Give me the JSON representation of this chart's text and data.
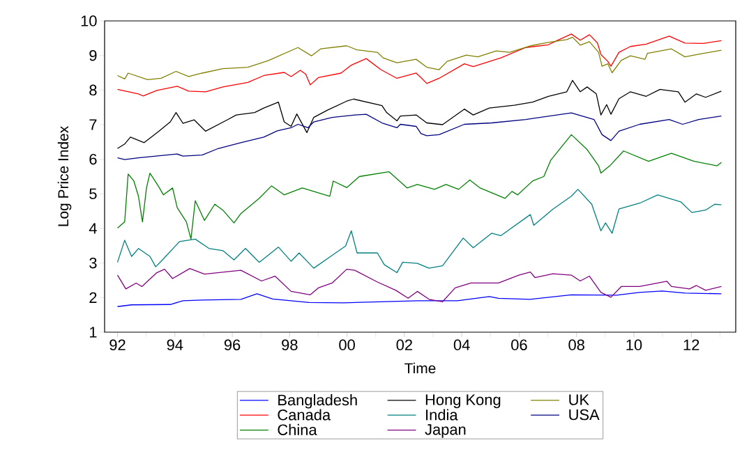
{
  "chart_data": {
    "type": "line",
    "xlabel": "Time",
    "ylabel": "Log Price Index",
    "xlim": [
      1991.55,
      2013.55
    ],
    "ylim": [
      1,
      10
    ],
    "xticks": [
      {
        "value": 1992,
        "label": "92"
      },
      {
        "value": 1993,
        "label": null
      },
      {
        "value": 1994,
        "label": "94"
      },
      {
        "value": 1995,
        "label": null
      },
      {
        "value": 1996,
        "label": "96"
      },
      {
        "value": 1997,
        "label": null
      },
      {
        "value": 1998,
        "label": "98"
      },
      {
        "value": 1999,
        "label": null
      },
      {
        "value": 2000,
        "label": "00"
      },
      {
        "value": 2001,
        "label": null
      },
      {
        "value": 2002,
        "label": "02"
      },
      {
        "value": 2003,
        "label": null
      },
      {
        "value": 2004,
        "label": "04"
      },
      {
        "value": 2005,
        "label": null
      },
      {
        "value": 2006,
        "label": "06"
      },
      {
        "value": 2007,
        "label": null
      },
      {
        "value": 2008,
        "label": "08"
      },
      {
        "value": 2009,
        "label": null
      },
      {
        "value": 2010,
        "label": "10"
      },
      {
        "value": 2011,
        "label": null
      },
      {
        "value": 2012,
        "label": "12"
      },
      {
        "value": 2013,
        "label": null
      }
    ],
    "yticks": [
      1,
      2,
      3,
      4,
      5,
      6,
      7,
      8,
      9,
      10
    ],
    "legend": "bottom",
    "series": [
      {
        "name": "Bangladesh",
        "color": "#0000ff",
        "x": [
          1992.0,
          1992.49,
          1993.84,
          1994.28,
          1994.95,
          1996.3,
          1996.86,
          1997.41,
          1998.68,
          1999.87,
          2002.49,
          2003.85,
          2004.96,
          2005.28,
          2006.39,
          2007.82,
          2009.4,
          2010.2,
          2010.99,
          2011.78,
          2013.05
        ],
        "values": [
          1.74,
          1.79,
          1.8,
          1.91,
          1.93,
          1.95,
          2.11,
          1.96,
          1.86,
          1.85,
          1.91,
          1.91,
          2.03,
          1.98,
          1.95,
          2.08,
          2.07,
          2.15,
          2.19,
          2.13,
          2.11
        ]
      },
      {
        "name": "Canada",
        "color": "#ff0000",
        "x": [
          1992.0,
          1992.73,
          1992.89,
          1993.37,
          1994.08,
          1994.48,
          1995.07,
          1995.67,
          1996.54,
          1997.1,
          1997.81,
          1998.05,
          1998.37,
          1998.56,
          1998.72,
          1999.0,
          1999.79,
          2000.15,
          2000.67,
          2001.18,
          2001.74,
          2002.41,
          2002.58,
          2002.78,
          2003.21,
          2004.09,
          2004.4,
          2005.36,
          2006.23,
          2007.02,
          2007.34,
          2007.82,
          2008.13,
          2008.45,
          2008.73,
          2008.85,
          2009.09,
          2009.2,
          2009.48,
          2009.88,
          2010.43,
          2011.23,
          2011.78,
          2012.42,
          2013.05
        ],
        "values": [
          8.02,
          7.89,
          7.83,
          7.99,
          8.11,
          7.97,
          7.95,
          8.09,
          8.22,
          8.42,
          8.51,
          8.39,
          8.57,
          8.46,
          8.15,
          8.36,
          8.49,
          8.72,
          8.91,
          8.59,
          8.34,
          8.49,
          8.36,
          8.19,
          8.34,
          8.76,
          8.68,
          8.93,
          9.23,
          9.31,
          9.44,
          9.62,
          9.44,
          9.6,
          9.36,
          9.03,
          8.83,
          8.69,
          9.09,
          9.26,
          9.33,
          9.56,
          9.36,
          9.35,
          9.43
        ]
      },
      {
        "name": "China",
        "color": "#008000",
        "x": [
          1992.0,
          1992.25,
          1992.37,
          1992.57,
          1992.73,
          1992.87,
          1993.01,
          1993.13,
          1993.44,
          1993.6,
          1993.92,
          1994.08,
          1994.4,
          1994.56,
          1994.71,
          1995.03,
          1995.39,
          1995.67,
          1996.06,
          1996.3,
          1996.94,
          1997.37,
          1997.81,
          1998.44,
          1998.84,
          1999.4,
          1999.52,
          1999.99,
          2000.43,
          2001.46,
          2002.1,
          2002.45,
          2003.05,
          2003.45,
          2003.89,
          2004.28,
          2004.64,
          2005.51,
          2005.75,
          2005.95,
          2006.47,
          2006.86,
          2007.1,
          2007.82,
          2008.37,
          2008.77,
          2008.85,
          2009.16,
          2009.64,
          2010.51,
          2011.31,
          2012.1,
          2012.9,
          2013.05
        ],
        "values": [
          4.01,
          4.19,
          5.57,
          5.37,
          4.93,
          4.19,
          5.17,
          5.6,
          5.2,
          4.97,
          5.17,
          4.6,
          4.19,
          3.69,
          4.8,
          4.23,
          4.7,
          4.53,
          4.16,
          4.43,
          4.87,
          5.23,
          4.97,
          5.17,
          5.07,
          4.93,
          5.37,
          5.18,
          5.5,
          5.64,
          5.17,
          5.27,
          5.13,
          5.27,
          5.13,
          5.4,
          5.17,
          4.87,
          5.07,
          4.97,
          5.37,
          5.5,
          5.97,
          6.71,
          6.28,
          5.81,
          5.6,
          5.81,
          6.24,
          5.94,
          6.17,
          5.94,
          5.81,
          5.91
        ]
      },
      {
        "name": "Hong Kong",
        "color": "#000000",
        "x": [
          1992.0,
          1992.25,
          1992.45,
          1992.93,
          1993.44,
          1993.84,
          1994.04,
          1994.28,
          1994.67,
          1995.07,
          1995.83,
          1996.14,
          1996.78,
          1997.1,
          1997.61,
          1997.81,
          1998.05,
          1998.25,
          1998.6,
          1998.84,
          1999.32,
          1999.99,
          2000.23,
          2001.22,
          2001.38,
          2001.74,
          2001.86,
          2002.41,
          2002.78,
          2003.33,
          2004.09,
          2004.4,
          2004.96,
          2005.83,
          2006.47,
          2007.02,
          2007.66,
          2007.86,
          2008.13,
          2008.37,
          2008.69,
          2008.85,
          2009.05,
          2009.2,
          2009.48,
          2009.88,
          2010.43,
          2010.91,
          2011.55,
          2011.78,
          2012.18,
          2012.5,
          2013.05
        ],
        "values": [
          6.31,
          6.44,
          6.64,
          6.48,
          6.81,
          7.08,
          7.35,
          7.04,
          7.14,
          6.81,
          7.14,
          7.28,
          7.35,
          7.48,
          7.65,
          7.08,
          6.95,
          7.31,
          6.77,
          7.21,
          7.42,
          7.68,
          7.74,
          7.55,
          7.35,
          7.11,
          7.25,
          7.28,
          7.05,
          7.0,
          7.45,
          7.28,
          7.48,
          7.56,
          7.65,
          7.82,
          7.95,
          8.28,
          7.95,
          8.09,
          7.89,
          7.28,
          7.58,
          7.3,
          7.75,
          7.95,
          7.82,
          8.02,
          7.95,
          7.65,
          7.89,
          7.79,
          7.97
        ]
      },
      {
        "name": "India",
        "color": "#008080",
        "x": [
          1992.0,
          1992.25,
          1992.49,
          1992.73,
          1993.13,
          1993.33,
          1993.6,
          1994.16,
          1994.71,
          1995.19,
          1995.67,
          1996.06,
          1996.46,
          1996.94,
          1997.61,
          1998.05,
          1998.33,
          1998.84,
          1999.48,
          1999.95,
          2000.15,
          2000.35,
          2001.06,
          2001.3,
          2001.74,
          2001.94,
          2002.45,
          2002.86,
          2003.33,
          2004.05,
          2004.4,
          2005.04,
          2005.36,
          2006.39,
          2006.51,
          2007.18,
          2007.82,
          2008.05,
          2008.53,
          2008.85,
          2009.01,
          2009.24,
          2009.48,
          2010.2,
          2010.83,
          2011.63,
          2012.02,
          2012.5,
          2012.82,
          2013.05
        ],
        "values": [
          3.02,
          3.66,
          3.19,
          3.42,
          3.19,
          2.89,
          3.12,
          3.62,
          3.69,
          3.42,
          3.36,
          3.09,
          3.42,
          3.02,
          3.46,
          3.05,
          3.29,
          2.85,
          3.22,
          3.49,
          3.93,
          3.29,
          3.29,
          2.95,
          2.72,
          3.02,
          2.99,
          2.85,
          2.92,
          3.72,
          3.44,
          3.86,
          3.79,
          4.4,
          4.09,
          4.56,
          4.93,
          5.13,
          4.7,
          3.93,
          4.16,
          3.86,
          4.56,
          4.73,
          4.97,
          4.77,
          4.46,
          4.53,
          4.7,
          4.68
        ]
      },
      {
        "name": "Japan",
        "color": "#800080",
        "x": [
          1992.0,
          1992.29,
          1992.65,
          1992.85,
          1993.37,
          1993.64,
          1993.92,
          1994.52,
          1995.03,
          1996.3,
          1997.02,
          1997.49,
          1998.05,
          1998.52,
          1998.72,
          1999.0,
          1999.48,
          1999.99,
          2000.27,
          2001.06,
          2001.7,
          2002.13,
          2002.45,
          2002.86,
          2003.33,
          2003.77,
          2004.32,
          2005.28,
          2005.99,
          2006.39,
          2006.55,
          2007.18,
          2007.82,
          2008.13,
          2008.45,
          2008.85,
          2009.2,
          2009.56,
          2010.2,
          2011.15,
          2011.31,
          2011.94,
          2012.18,
          2012.5,
          2013.05
        ],
        "values": [
          2.65,
          2.25,
          2.42,
          2.32,
          2.72,
          2.82,
          2.55,
          2.84,
          2.68,
          2.79,
          2.48,
          2.62,
          2.18,
          2.11,
          2.08,
          2.28,
          2.42,
          2.82,
          2.79,
          2.45,
          2.21,
          1.98,
          2.18,
          1.95,
          1.88,
          2.28,
          2.42,
          2.42,
          2.65,
          2.74,
          2.58,
          2.69,
          2.65,
          2.48,
          2.62,
          2.15,
          2.01,
          2.32,
          2.32,
          2.47,
          2.32,
          2.25,
          2.35,
          2.21,
          2.32
        ]
      },
      {
        "name": "UK",
        "color": "#808000",
        "x": [
          1992.0,
          1992.25,
          1992.37,
          1993.05,
          1993.52,
          1994.04,
          1994.48,
          1994.95,
          1995.67,
          1996.54,
          1997.25,
          1998.29,
          1998.76,
          1999.08,
          1999.99,
          2000.35,
          2001.06,
          2001.26,
          2001.74,
          2002.41,
          2002.78,
          2003.21,
          2003.49,
          2004.16,
          2004.56,
          2005.2,
          2005.67,
          2006.39,
          2007.02,
          2007.66,
          2007.86,
          2008.13,
          2008.45,
          2008.77,
          2008.89,
          2009.09,
          2009.24,
          2009.56,
          2009.88,
          2010.39,
          2010.47,
          2011.31,
          2011.78,
          2012.42,
          2013.05
        ],
        "values": [
          8.42,
          8.32,
          8.49,
          8.3,
          8.34,
          8.54,
          8.39,
          8.49,
          8.62,
          8.66,
          8.85,
          9.23,
          8.99,
          9.19,
          9.28,
          9.16,
          9.09,
          8.93,
          8.79,
          8.89,
          8.66,
          8.59,
          8.83,
          9.01,
          8.96,
          9.13,
          9.09,
          9.28,
          9.38,
          9.46,
          9.53,
          9.3,
          9.4,
          9.09,
          8.69,
          8.76,
          8.5,
          8.86,
          8.99,
          8.89,
          9.06,
          9.19,
          8.96,
          9.06,
          9.15
        ]
      },
      {
        "name": "USA",
        "color": "#000080",
        "x": [
          1992.0,
          1992.25,
          1992.73,
          1994.08,
          1994.28,
          1994.95,
          1995.51,
          1996.3,
          1997.1,
          1997.57,
          1998.05,
          1998.29,
          1998.64,
          1998.84,
          1999.48,
          2000.27,
          2000.67,
          2001.22,
          2001.74,
          2001.86,
          2002.41,
          2002.58,
          2002.78,
          2003.21,
          2004.09,
          2005.04,
          2006.23,
          2007.82,
          2008.61,
          2008.89,
          2009.2,
          2009.48,
          2010.2,
          2011.23,
          2011.7,
          2012.26,
          2013.05
        ],
        "values": [
          6.04,
          5.99,
          6.04,
          6.15,
          6.09,
          6.12,
          6.31,
          6.48,
          6.64,
          6.82,
          6.91,
          7.01,
          6.91,
          7.08,
          7.21,
          7.28,
          7.3,
          7.05,
          6.91,
          7.01,
          6.95,
          6.74,
          6.68,
          6.71,
          7.01,
          7.05,
          7.15,
          7.34,
          7.15,
          6.71,
          6.54,
          6.81,
          7.01,
          7.15,
          7.01,
          7.15,
          7.25
        ]
      }
    ]
  }
}
